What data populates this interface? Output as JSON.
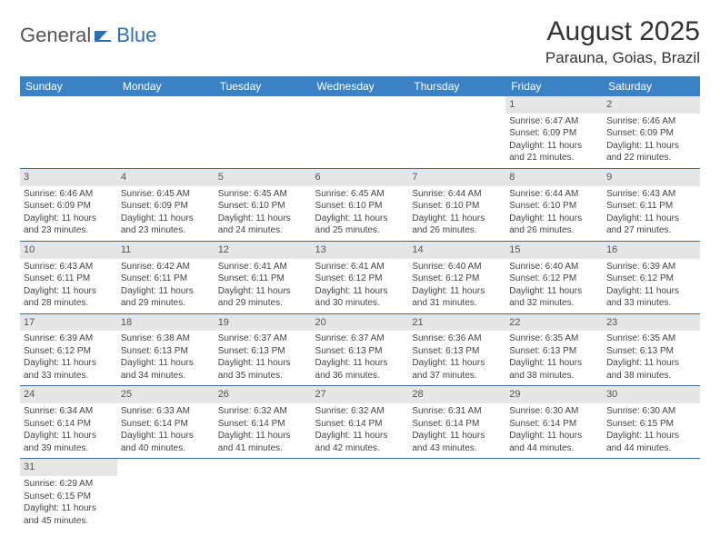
{
  "logo": {
    "general": "General",
    "blue": "Blue"
  },
  "title": "August 2025",
  "location": "Parauna, Goias, Brazil",
  "colors": {
    "header_bg": "#3b82c4",
    "header_fg": "#ffffff",
    "daynum_bg": "#e6e6e6",
    "divider": "#2b6fb0",
    "logo_blue": "#2b6fb0"
  },
  "dayHeaders": [
    "Sunday",
    "Monday",
    "Tuesday",
    "Wednesday",
    "Thursday",
    "Friday",
    "Saturday"
  ],
  "weeks": [
    [
      null,
      null,
      null,
      null,
      null,
      {
        "n": "1",
        "sr": "6:47 AM",
        "ss": "6:09 PM",
        "dl": "11 hours and 21 minutes."
      },
      {
        "n": "2",
        "sr": "6:46 AM",
        "ss": "6:09 PM",
        "dl": "11 hours and 22 minutes."
      }
    ],
    [
      {
        "n": "3",
        "sr": "6:46 AM",
        "ss": "6:09 PM",
        "dl": "11 hours and 23 minutes."
      },
      {
        "n": "4",
        "sr": "6:45 AM",
        "ss": "6:09 PM",
        "dl": "11 hours and 23 minutes."
      },
      {
        "n": "5",
        "sr": "6:45 AM",
        "ss": "6:10 PM",
        "dl": "11 hours and 24 minutes."
      },
      {
        "n": "6",
        "sr": "6:45 AM",
        "ss": "6:10 PM",
        "dl": "11 hours and 25 minutes."
      },
      {
        "n": "7",
        "sr": "6:44 AM",
        "ss": "6:10 PM",
        "dl": "11 hours and 26 minutes."
      },
      {
        "n": "8",
        "sr": "6:44 AM",
        "ss": "6:10 PM",
        "dl": "11 hours and 26 minutes."
      },
      {
        "n": "9",
        "sr": "6:43 AM",
        "ss": "6:11 PM",
        "dl": "11 hours and 27 minutes."
      }
    ],
    [
      {
        "n": "10",
        "sr": "6:43 AM",
        "ss": "6:11 PM",
        "dl": "11 hours and 28 minutes."
      },
      {
        "n": "11",
        "sr": "6:42 AM",
        "ss": "6:11 PM",
        "dl": "11 hours and 29 minutes."
      },
      {
        "n": "12",
        "sr": "6:41 AM",
        "ss": "6:11 PM",
        "dl": "11 hours and 29 minutes."
      },
      {
        "n": "13",
        "sr": "6:41 AM",
        "ss": "6:12 PM",
        "dl": "11 hours and 30 minutes."
      },
      {
        "n": "14",
        "sr": "6:40 AM",
        "ss": "6:12 PM",
        "dl": "11 hours and 31 minutes."
      },
      {
        "n": "15",
        "sr": "6:40 AM",
        "ss": "6:12 PM",
        "dl": "11 hours and 32 minutes."
      },
      {
        "n": "16",
        "sr": "6:39 AM",
        "ss": "6:12 PM",
        "dl": "11 hours and 33 minutes."
      }
    ],
    [
      {
        "n": "17",
        "sr": "6:39 AM",
        "ss": "6:12 PM",
        "dl": "11 hours and 33 minutes."
      },
      {
        "n": "18",
        "sr": "6:38 AM",
        "ss": "6:13 PM",
        "dl": "11 hours and 34 minutes."
      },
      {
        "n": "19",
        "sr": "6:37 AM",
        "ss": "6:13 PM",
        "dl": "11 hours and 35 minutes."
      },
      {
        "n": "20",
        "sr": "6:37 AM",
        "ss": "6:13 PM",
        "dl": "11 hours and 36 minutes."
      },
      {
        "n": "21",
        "sr": "6:36 AM",
        "ss": "6:13 PM",
        "dl": "11 hours and 37 minutes."
      },
      {
        "n": "22",
        "sr": "6:35 AM",
        "ss": "6:13 PM",
        "dl": "11 hours and 38 minutes."
      },
      {
        "n": "23",
        "sr": "6:35 AM",
        "ss": "6:13 PM",
        "dl": "11 hours and 38 minutes."
      }
    ],
    [
      {
        "n": "24",
        "sr": "6:34 AM",
        "ss": "6:14 PM",
        "dl": "11 hours and 39 minutes."
      },
      {
        "n": "25",
        "sr": "6:33 AM",
        "ss": "6:14 PM",
        "dl": "11 hours and 40 minutes."
      },
      {
        "n": "26",
        "sr": "6:32 AM",
        "ss": "6:14 PM",
        "dl": "11 hours and 41 minutes."
      },
      {
        "n": "27",
        "sr": "6:32 AM",
        "ss": "6:14 PM",
        "dl": "11 hours and 42 minutes."
      },
      {
        "n": "28",
        "sr": "6:31 AM",
        "ss": "6:14 PM",
        "dl": "11 hours and 43 minutes."
      },
      {
        "n": "29",
        "sr": "6:30 AM",
        "ss": "6:14 PM",
        "dl": "11 hours and 44 minutes."
      },
      {
        "n": "30",
        "sr": "6:30 AM",
        "ss": "6:15 PM",
        "dl": "11 hours and 44 minutes."
      }
    ],
    [
      {
        "n": "31",
        "sr": "6:29 AM",
        "ss": "6:15 PM",
        "dl": "11 hours and 45 minutes."
      },
      null,
      null,
      null,
      null,
      null,
      null
    ]
  ],
  "labels": {
    "sunrise": "Sunrise: ",
    "sunset": "Sunset: ",
    "daylight": "Daylight: "
  }
}
